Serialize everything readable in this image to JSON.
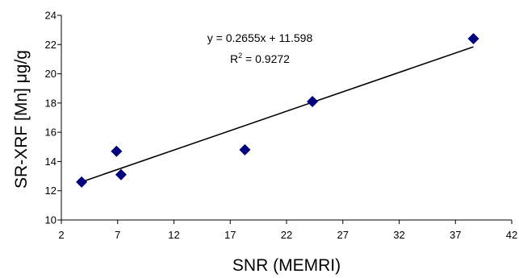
{
  "chart_data": {
    "type": "scatter",
    "xlabel": "SNR (MEMRI)",
    "ylabel": "SR-XRF [Mn] μg/g",
    "xlim": [
      2,
      42
    ],
    "ylim": [
      10,
      24
    ],
    "xticks": [
      2,
      7,
      12,
      17,
      22,
      27,
      32,
      37,
      42
    ],
    "yticks": [
      10,
      12,
      14,
      16,
      18,
      20,
      22,
      24
    ],
    "grid": false,
    "legend": "none",
    "marker_color": "#00007f",
    "points": [
      {
        "x": 3.8,
        "y": 12.6
      },
      {
        "x": 6.9,
        "y": 14.7
      },
      {
        "x": 7.3,
        "y": 13.1
      },
      {
        "x": 18.3,
        "y": 14.8
      },
      {
        "x": 24.3,
        "y": 18.1
      },
      {
        "x": 38.6,
        "y": 22.4
      }
    ],
    "trendline": {
      "slope": 0.2655,
      "intercept": 11.598,
      "x_range": [
        3.8,
        38.6
      ]
    },
    "annotation": {
      "equation": "y = 0.2655x + 11.598",
      "r_squared_prefix": "R",
      "r_squared_exp": "2",
      "r_squared_value": " = 0.9272"
    }
  }
}
